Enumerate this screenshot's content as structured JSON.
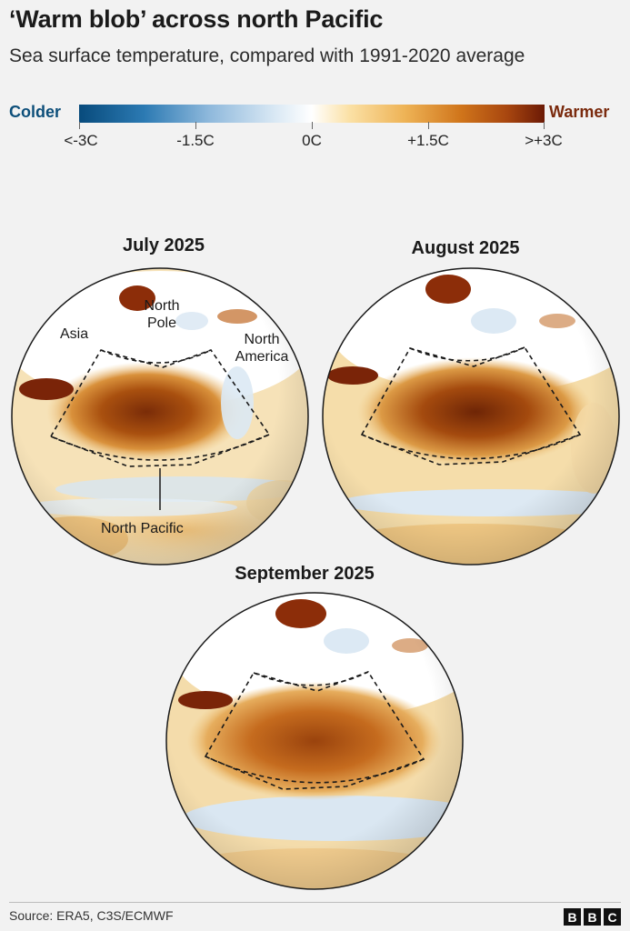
{
  "header": {
    "title": "‘Warm blob’ across north Pacific",
    "subtitle": "Sea surface temperature, compared with 1991-2020 average"
  },
  "legend": {
    "cold_label": "Colder",
    "warm_label": "Warmer",
    "ticks": [
      "<-3C",
      "-1.5C",
      "0C",
      "+1.5C",
      ">+3C"
    ],
    "scale_min": -3,
    "scale_max": 3,
    "unit": "C",
    "colors": {
      "coldest": "#084b7c",
      "neutral": "#ffffff",
      "warmest": "#6b1a06"
    }
  },
  "maps": [
    {
      "title": "July 2025",
      "labels": [
        "Asia",
        "North Pole",
        "North America",
        "North Pacific"
      ]
    },
    {
      "title": "August 2025"
    },
    {
      "title": "September 2025"
    }
  ],
  "footer": {
    "source": "Source: ERA5, C3S/ECMWF",
    "logo_letters": [
      "B",
      "B",
      "C"
    ]
  }
}
